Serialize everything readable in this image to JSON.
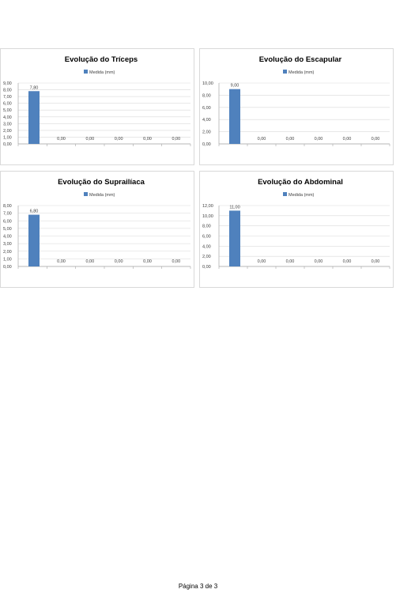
{
  "page": {
    "footer": "Página 3 de 3"
  },
  "chart_data": [
    {
      "type": "bar",
      "title": "Evolução do Tríceps",
      "legend": "top",
      "series": [
        {
          "name": "Medida (mm)",
          "values": [
            7.8,
            0,
            0,
            0,
            0,
            0
          ]
        }
      ],
      "value_labels": [
        "7,80",
        "0,00",
        "0,00",
        "0,00",
        "0,00",
        "0,00"
      ],
      "ylim": [
        0,
        9
      ],
      "yticks": [
        "0,00",
        "1,00",
        "2,00",
        "3,00",
        "4,00",
        "5,00",
        "6,00",
        "7,00",
        "8,00",
        "9,00"
      ],
      "grid": true,
      "bar_color": "#4f81bd"
    },
    {
      "type": "bar",
      "title": "Evolução do Escapular",
      "legend": "top",
      "series": [
        {
          "name": "Medida (mm)",
          "values": [
            9,
            0,
            0,
            0,
            0,
            0
          ]
        }
      ],
      "value_labels": [
        "9,00",
        "0,00",
        "0,00",
        "0,00",
        "0,00",
        "0,00"
      ],
      "ylim": [
        0,
        10
      ],
      "yticks": [
        "0,00",
        "2,00",
        "4,00",
        "6,00",
        "8,00",
        "10,00"
      ],
      "grid": true,
      "bar_color": "#4f81bd"
    },
    {
      "type": "bar",
      "title": "Evolução do Suprailíaca",
      "legend": "top",
      "series": [
        {
          "name": "Medida (mm)",
          "values": [
            6.8,
            0,
            0,
            0,
            0,
            0
          ]
        }
      ],
      "value_labels": [
        "6,80",
        "0,00",
        "0,00",
        "0,00",
        "0,00",
        "0,00"
      ],
      "ylim": [
        0,
        8
      ],
      "yticks": [
        "0,00",
        "1,00",
        "2,00",
        "3,00",
        "4,00",
        "5,00",
        "6,00",
        "7,00",
        "8,00"
      ],
      "grid": true,
      "bar_color": "#4f81bd"
    },
    {
      "type": "bar",
      "title": "Evolução do Abdominal",
      "legend": "top",
      "series": [
        {
          "name": "Medida (mm)",
          "values": [
            11,
            0,
            0,
            0,
            0,
            0
          ]
        }
      ],
      "value_labels": [
        "11,00",
        "0,00",
        "0,00",
        "0,00",
        "0,00",
        "0,00"
      ],
      "ylim": [
        0,
        12
      ],
      "yticks": [
        "0,00",
        "2,00",
        "4,00",
        "6,00",
        "8,00",
        "10,00",
        "12,00"
      ],
      "grid": true,
      "bar_color": "#4f81bd"
    }
  ]
}
